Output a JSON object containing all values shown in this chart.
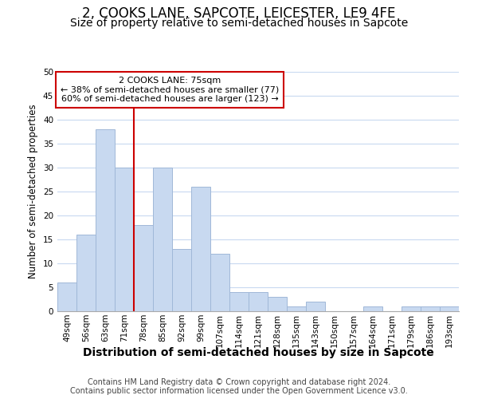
{
  "title": "2, COOKS LANE, SAPCOTE, LEICESTER, LE9 4FE",
  "subtitle": "Size of property relative to semi-detached houses in Sapcote",
  "xlabel": "Distribution of semi-detached houses by size in Sapcote",
  "ylabel": "Number of semi-detached properties",
  "footer_line1": "Contains HM Land Registry data © Crown copyright and database right 2024.",
  "footer_line2": "Contains public sector information licensed under the Open Government Licence v3.0.",
  "categories": [
    "49sqm",
    "56sqm",
    "63sqm",
    "71sqm",
    "78sqm",
    "85sqm",
    "92sqm",
    "99sqm",
    "107sqm",
    "114sqm",
    "121sqm",
    "128sqm",
    "135sqm",
    "143sqm",
    "150sqm",
    "157sqm",
    "164sqm",
    "171sqm",
    "179sqm",
    "186sqm",
    "193sqm"
  ],
  "values": [
    6,
    16,
    38,
    30,
    18,
    30,
    13,
    26,
    12,
    4,
    4,
    3,
    1,
    2,
    0,
    0,
    1,
    0,
    1,
    1,
    1
  ],
  "bar_color": "#c8d9f0",
  "bar_edge_color": "#a0b8d8",
  "highlight_line_color": "#cc0000",
  "annotation_box_text_line1": "2 COOKS LANE: 75sqm",
  "annotation_box_text_line2": "← 38% of semi-detached houses are smaller (77)",
  "annotation_box_text_line3": "60% of semi-detached houses are larger (123) →",
  "annotation_box_edge_color": "#cc0000",
  "annotation_box_face_color": "#ffffff",
  "ylim": [
    0,
    50
  ],
  "yticks": [
    0,
    5,
    10,
    15,
    20,
    25,
    30,
    35,
    40,
    45,
    50
  ],
  "background_color": "#ffffff",
  "grid_color": "#c8d9f0",
  "title_fontsize": 12,
  "subtitle_fontsize": 10,
  "xlabel_fontsize": 10,
  "ylabel_fontsize": 8.5,
  "tick_fontsize": 7.5,
  "annotation_fontsize": 8,
  "footer_fontsize": 7
}
